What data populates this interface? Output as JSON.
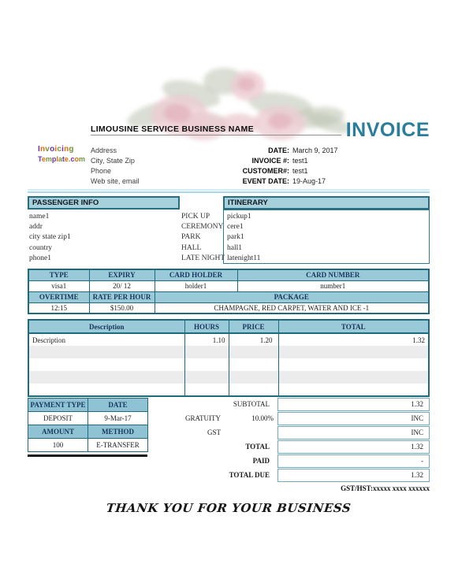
{
  "page": {
    "business_name": "LIMOUSINE SERVICE BUSINESS NAME",
    "invoice_title": "INVOICE",
    "tax_note": "GST/HST:xxxxx xxxx xxxxxx",
    "thank_you": "THANK YOU FOR YOUR BUSINESS"
  },
  "logo": {
    "line1": "Invoicing",
    "line2": "Template.com",
    "colors": [
      "#7030a0",
      "#e36c0a",
      "#76923c"
    ]
  },
  "company": {
    "address": "Address",
    "city": "City, State Zip",
    "phone": "Phone",
    "web": "Web site, email"
  },
  "meta": {
    "rows": [
      {
        "label": "DATE:",
        "value": "March 9, 2017"
      },
      {
        "label": "INVOICE #:",
        "value": "test1"
      },
      {
        "label": "CUSTOMER#:",
        "value": "test1"
      },
      {
        "label": "EVENT DATE:",
        "value": "19-Aug-17"
      }
    ]
  },
  "passenger": {
    "header": "PASSENGER INFO",
    "values": [
      "name1",
      "addr",
      "city state zip1",
      "country",
      "phone1"
    ]
  },
  "itinerary": {
    "header": "ITINERARY",
    "labels": [
      "PICK UP",
      "CEREMONY",
      "PARK",
      "HALL",
      "LATE NIGHT"
    ],
    "values": [
      "pickup1",
      "cere1",
      "park1",
      "hall1",
      "latenight11"
    ]
  },
  "card": {
    "headers1": [
      "TYPE",
      "EXPIRY",
      "CARD HOLDER",
      "CARD NUMBER"
    ],
    "values1": [
      "visa1",
      "20/ 12",
      "holder1",
      "number1"
    ],
    "headers2": [
      "OVERTIME",
      "RATE PER HOUR",
      "PACKAGE"
    ],
    "values2": [
      "12:15",
      "$150.00",
      "CHAMPAGNE, RED CARPET, WATER AND ICE -1"
    ]
  },
  "charges": {
    "headers": [
      "Description",
      "HOURS",
      "PRICE",
      "TOTAL"
    ],
    "rows": [
      {
        "description": "Description",
        "hours": "1.10",
        "price": "1.20",
        "total": "1.32"
      }
    ]
  },
  "payment": {
    "headers1": [
      "PAYMENT TYPE",
      "DATE"
    ],
    "values1": [
      "DEPOSIT",
      "9-Mar-17"
    ],
    "headers2": [
      "AMOUNT",
      "METHOD"
    ],
    "values2": [
      "100",
      "E-TRANSFER"
    ]
  },
  "totals": {
    "rows": [
      {
        "label": "SUBTOTAL",
        "pct": "",
        "value": "1.32"
      },
      {
        "label": "GRATUITY",
        "pct": "10.00%",
        "value": "INC"
      },
      {
        "label": "GST",
        "pct": "",
        "value": "INC"
      },
      {
        "label": "TOTAL",
        "pct": "",
        "value": "1.32"
      },
      {
        "label": "PAID",
        "pct": "",
        "value": "-"
      },
      {
        "label": "TOTAL DUE",
        "pct": "",
        "value": "1.32"
      }
    ]
  },
  "colors": {
    "accent_teal_border": "#1e6b7d",
    "section_bar_bg": "#a6d0db",
    "table_header_bg": "#9ac9d8",
    "invoice_title": "#2b7d9c",
    "header_text_navy": "#17365d",
    "stripe_row": "#ececec"
  }
}
